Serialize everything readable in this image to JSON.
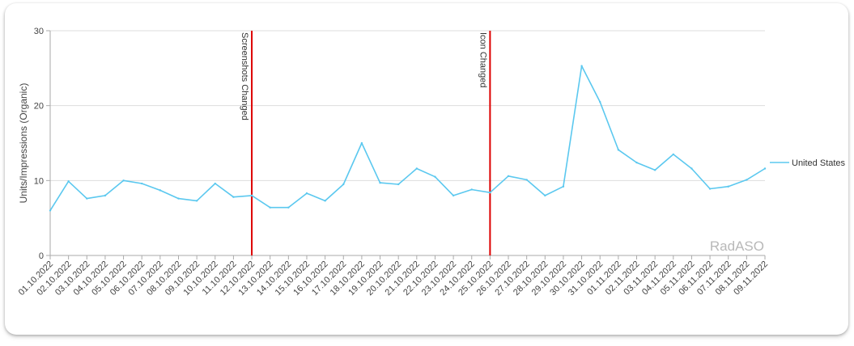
{
  "chart_data": {
    "type": "line",
    "ylabel": "Units/Impressions (Organic)",
    "xlabel": "",
    "ylim": [
      0,
      30
    ],
    "yticks": [
      0,
      10,
      20,
      30
    ],
    "grid": true,
    "legend_position": "right",
    "colors": {
      "series": "#5bc8ef",
      "annotation": "#dd0000",
      "grid": "#dddddd"
    },
    "watermark": "RadASO",
    "categories": [
      "01.10.2022",
      "02.10.2022",
      "03.10.2022",
      "04.10.2022",
      "05.10.2022",
      "06.10.2022",
      "07.10.2022",
      "08.10.2022",
      "09.10.2022",
      "10.10.2022",
      "11.10.2022",
      "12.10.2022",
      "13.10.2022",
      "14.10.2022",
      "15.10.2022",
      "16.10.2022",
      "17.10.2022",
      "18.10.2022",
      "19.10.2022",
      "20.10.2022",
      "21.10.2022",
      "22.10.2022",
      "23.10.2022",
      "24.10.2022",
      "25.10.2022",
      "26.10.2022",
      "27.10.2022",
      "28.10.2022",
      "29.10.2022",
      "30.10.2022",
      "31.10.2022",
      "01.11.2022",
      "02.11.2022",
      "03.11.2022",
      "04.11.2022",
      "05.11.2022",
      "06.11.2022",
      "07.11.2022",
      "08.11.2022",
      "09.11.2022"
    ],
    "series": [
      {
        "name": "United States",
        "values": [
          6.0,
          9.9,
          7.6,
          8.0,
          10.0,
          9.6,
          8.7,
          7.6,
          7.3,
          9.6,
          7.8,
          8.0,
          6.4,
          6.4,
          8.3,
          7.3,
          9.5,
          15.0,
          9.7,
          9.5,
          11.6,
          10.5,
          8.0,
          8.8,
          8.4,
          10.6,
          10.1,
          8.0,
          9.2,
          25.3,
          20.5,
          14.1,
          12.4,
          11.4,
          13.5,
          11.6,
          8.9,
          9.2,
          10.1,
          11.6
        ]
      }
    ],
    "annotations": [
      {
        "x": "12.10.2022",
        "label": "Screenshots Changed"
      },
      {
        "x": "25.10.2022",
        "label": "Icon Changed"
      }
    ]
  }
}
